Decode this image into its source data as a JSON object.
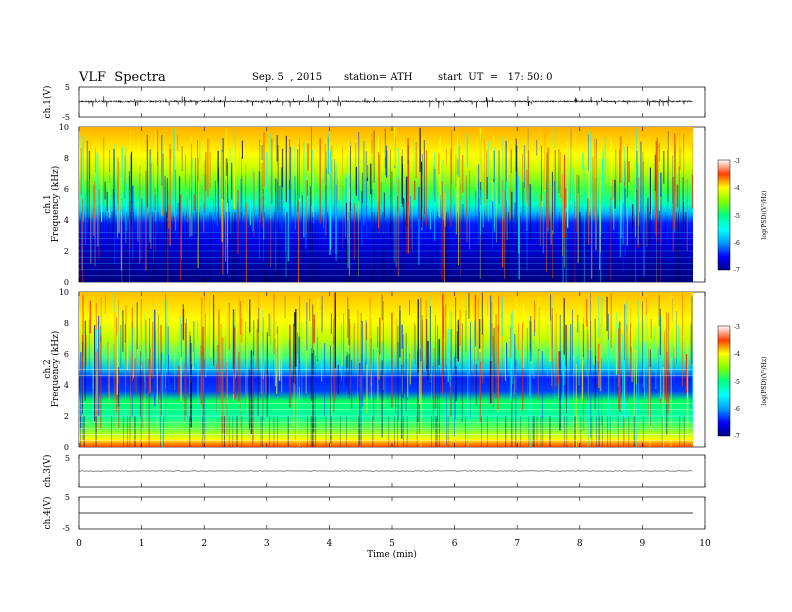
{
  "header": {
    "title": "VLF  Spectra",
    "date": "Sep. 5  , 2015",
    "station": "station= ATH",
    "start": "start  UT  =   17: 50: 0"
  },
  "chart_data": [
    {
      "type": "line",
      "id": "ch1-waveform",
      "ylabel": "ch.1(V)",
      "ylim": [
        -5,
        5
      ],
      "y_ticks": [
        "5",
        "-5"
      ],
      "x_range": [
        0,
        10
      ],
      "x_extent": [
        0,
        9.8
      ],
      "approx_level": 0.2,
      "noise_amplitude": 0.6
    },
    {
      "type": "heatmap",
      "id": "ch1-spectrogram",
      "ylabel": "ch.1\nFrequency  (kHz)",
      "ylim": [
        0,
        10
      ],
      "y_ticks": [
        "0",
        "2",
        "4",
        "6",
        "8",
        "10"
      ],
      "x_range": [
        0,
        10
      ],
      "x_extent": [
        0,
        9.8
      ],
      "colorbar": {
        "label": "log(PSD)(V²/Hz)",
        "range": [
          -7,
          -3
        ],
        "ticks": [
          "-3",
          "-4",
          "-5",
          "-6",
          "-7"
        ]
      }
    },
    {
      "type": "heatmap",
      "id": "ch2-spectrogram",
      "ylabel": "ch.2\nFrequency  (kHz)",
      "ylim": [
        0,
        10
      ],
      "y_ticks": [
        "0",
        "2",
        "4",
        "6",
        "8",
        "10"
      ],
      "x_range": [
        0,
        10
      ],
      "x_extent": [
        0,
        9.8
      ],
      "colorbar": {
        "label": "log(PSD)(V²/Hz)",
        "range": [
          -7,
          -3
        ],
        "ticks": [
          "-3",
          "-4",
          "-5",
          "-6",
          "-7"
        ]
      }
    },
    {
      "type": "line",
      "id": "ch3-waveform",
      "ylabel": "ch.3(V)",
      "ylim": [
        -5,
        5
      ],
      "y_ticks": [
        "5"
      ],
      "x_range": [
        0,
        10
      ],
      "x_extent": [
        0,
        9.8
      ],
      "approx_level": 0.0
    },
    {
      "type": "line",
      "id": "ch4-waveform",
      "ylabel": "ch.4(V)",
      "ylim": [
        -5,
        5
      ],
      "y_ticks": [
        "5",
        "-5"
      ],
      "x_range": [
        0,
        10
      ],
      "x_extent": [
        0,
        9.8
      ],
      "approx_level": 0.0
    }
  ],
  "x_axis": {
    "label": "Time  (min)",
    "ticks": [
      "0",
      "1",
      "2",
      "3",
      "4",
      "5",
      "6",
      "7",
      "8",
      "9",
      "10"
    ]
  },
  "colormap": [
    "#000088",
    "#0000ff",
    "#00a0ff",
    "#00ffff",
    "#00ff80",
    "#80ff00",
    "#ffff00",
    "#ff8000",
    "#ff0000",
    "#ffffff"
  ]
}
